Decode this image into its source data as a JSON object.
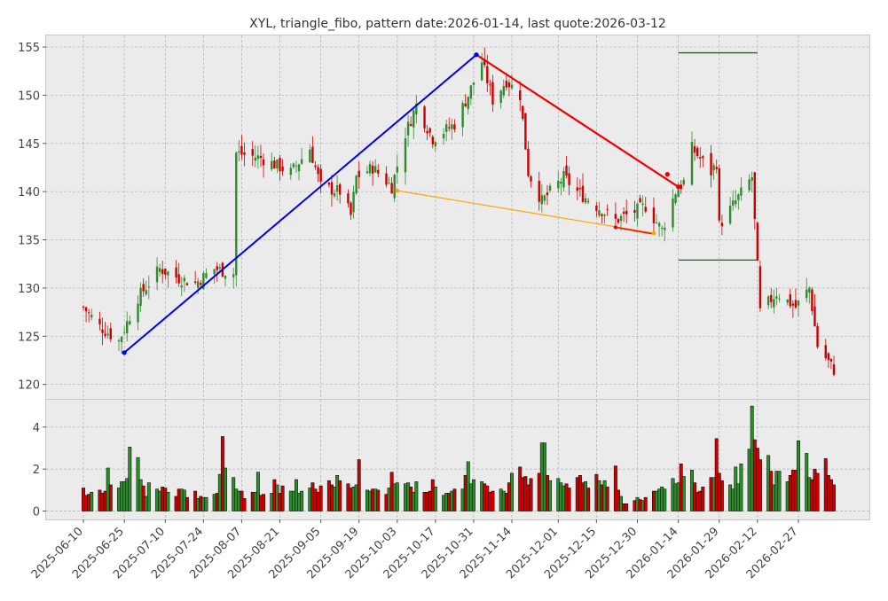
{
  "chart_data": {
    "type": "candlestick",
    "title": "XYL, triangle_fibo, pattern date:2026-01-14, last quote:2026-03-12",
    "colors": {
      "panel_bg": "#ebebeb",
      "grid": "#b0b0b0",
      "up": "#2e8b2e",
      "down": "#cc0000",
      "triangle_blue": "#0000ee",
      "triangle_red": "#ee0000",
      "fibo_orange": "#ffa500",
      "level_green": "#007700"
    },
    "price_axis": {
      "ylim": [
        118.5,
        156.2
      ],
      "ticks": [
        120,
        125,
        130,
        135,
        140,
        145,
        150,
        155
      ]
    },
    "volume_axis": {
      "ylim": [
        -0.4,
        5.3
      ],
      "ticks": [
        0,
        2,
        4
      ]
    },
    "x_axis": {
      "first_date": "2025-06-10",
      "last_date": "2026-03-12",
      "tick_labels": [
        "2025-06-10",
        "2025-06-25",
        "2025-07-10",
        "2025-07-24",
        "2025-08-07",
        "2025-08-21",
        "2025-09-05",
        "2025-09-19",
        "2025-10-03",
        "2025-10-17",
        "2025-10-31",
        "2025-11-14",
        "2025-12-01",
        "2025-12-15",
        "2025-12-30",
        "2026-01-14",
        "2026-01-29",
        "2026-02-12",
        "2026-02-27"
      ]
    },
    "anchors": [
      {
        "date": "2025-06-10",
        "price": 128.0
      },
      {
        "date": "2025-06-16",
        "price": 126.0
      },
      {
        "date": "2025-06-23",
        "price": 124.5
      },
      {
        "date": "2025-06-30",
        "price": 129.0
      },
      {
        "date": "2025-07-08",
        "price": 132.0
      },
      {
        "date": "2025-07-15",
        "price": 131.0
      },
      {
        "date": "2025-07-21",
        "price": 130.5
      },
      {
        "date": "2025-07-28",
        "price": 132.0
      },
      {
        "date": "2025-08-04",
        "price": 131.5
      },
      {
        "date": "2025-08-05",
        "price": 144.0
      },
      {
        "date": "2025-08-14",
        "price": 143.5
      },
      {
        "date": "2025-08-25",
        "price": 142.0
      },
      {
        "date": "2025-09-01",
        "price": 144.5
      },
      {
        "date": "2025-09-05",
        "price": 140.5
      },
      {
        "date": "2025-09-12",
        "price": 140.0
      },
      {
        "date": "2025-09-16",
        "price": 137.5
      },
      {
        "date": "2025-09-18",
        "price": 141.5
      },
      {
        "date": "2025-09-24",
        "price": 142.5
      },
      {
        "date": "2025-10-01",
        "price": 140.5
      },
      {
        "date": "2025-10-06",
        "price": 146.0
      },
      {
        "date": "2025-10-10",
        "price": 149.0
      },
      {
        "date": "2025-10-16",
        "price": 145.5
      },
      {
        "date": "2025-10-24",
        "price": 147.0
      },
      {
        "date": "2025-10-29",
        "price": 150.0
      },
      {
        "date": "2025-11-03",
        "price": 153.5
      },
      {
        "date": "2025-11-07",
        "price": 149.5
      },
      {
        "date": "2025-11-12",
        "price": 151.5
      },
      {
        "date": "2025-11-17",
        "price": 150.0
      },
      {
        "date": "2025-11-20",
        "price": 142.0
      },
      {
        "date": "2025-11-25",
        "price": 139.0
      },
      {
        "date": "2025-12-03",
        "price": 141.5
      },
      {
        "date": "2025-12-08",
        "price": 140.0
      },
      {
        "date": "2025-12-15",
        "price": 138.5
      },
      {
        "date": "2025-12-22",
        "price": 137.0
      },
      {
        "date": "2026-01-02",
        "price": 138.5
      },
      {
        "date": "2026-01-08",
        "price": 136.0
      },
      {
        "date": "2026-01-13",
        "price": 140.0
      },
      {
        "date": "2026-01-16",
        "price": 141.0
      },
      {
        "date": "2026-01-19",
        "price": 144.5
      },
      {
        "date": "2026-01-26",
        "price": 142.0
      },
      {
        "date": "2026-01-28",
        "price": 143.0
      },
      {
        "date": "2026-01-29",
        "price": 136.5
      },
      {
        "date": "2026-02-04",
        "price": 139.0
      },
      {
        "date": "2026-02-10",
        "price": 141.5
      },
      {
        "date": "2026-02-13",
        "price": 127.5
      },
      {
        "date": "2026-02-19",
        "price": 129.5
      },
      {
        "date": "2026-02-26",
        "price": 128.0
      },
      {
        "date": "2026-03-03",
        "price": 130.0
      },
      {
        "date": "2026-03-06",
        "price": 124.0
      },
      {
        "date": "2026-03-12",
        "price": 121.5
      }
    ],
    "volume_series": [
      1.1,
      0.75,
      0.8,
      0.9,
      1.0,
      0.85,
      0.95,
      2.05,
      1.25,
      1.1,
      1.4,
      1.55,
      3.05,
      2.55,
      1.5,
      1.2,
      0.7,
      1.35,
      1.05,
      0.95,
      1.15,
      1.1,
      0.9,
      0.7,
      1.05,
      1.05,
      1.0,
      0.65,
      0.95,
      0.6,
      0.7,
      0.65,
      0.8,
      0.85,
      1.75,
      3.55,
      2.05,
      1.6,
      1.05,
      0.95,
      0.95,
      0.6,
      0.9,
      0.9,
      1.85,
      0.75,
      0.8,
      0.85,
      1.5,
      1.25,
      0.85,
      1.2,
      0.95,
      1.5,
      0.85,
      0.95,
      1.1,
      1.35,
      1.05,
      0.9,
      1.2,
      1.45,
      1.25,
      1.15,
      1.7,
      1.45,
      1.3,
      1.1,
      1.15,
      1.25,
      2.45,
      1.0,
      0.95,
      1.05,
      1.0,
      0.8,
      1.1,
      1.85,
      1.3,
      1.35,
      1.3,
      1.35,
      1.15,
      0.9,
      1.4,
      0.9,
      0.9,
      0.95,
      1.5,
      1.15,
      0.75,
      0.85,
      0.85,
      0.95,
      1.05,
      1.7,
      2.35,
      1.3,
      1.5,
      1.4,
      1.3,
      1.2,
      0.9,
      0.95,
      1.05,
      0.95,
      0.85,
      1.35,
      1.8,
      2.1,
      1.6,
      1.65,
      1.25,
      1.55,
      1.8,
      3.25,
      1.7,
      1.45,
      1.55,
      1.35,
      1.2,
      1.3,
      1.1,
      1.6,
      1.7,
      1.35,
      1.4,
      1.1,
      1.75,
      1.45,
      1.25,
      1.45,
      1.15,
      2.15,
      1.0,
      0.7,
      0.35,
      0.5,
      0.65,
      0.55,
      0.5,
      0.65,
      0.95,
      0.95,
      1.05,
      1.15,
      1.05,
      1.55,
      1.3,
      1.35,
      2.25,
      1.65,
      1.95,
      1.35,
      0.9,
      0.95,
      1.15,
      1.6,
      3.45,
      1.8,
      1.45,
      1.25,
      1.05,
      2.1,
      1.3,
      2.25,
      2.95,
      5.0,
      3.4,
      3.0,
      2.45,
      2.65,
      1.9,
      1.25,
      1.9,
      1.9,
      1.4,
      1.7,
      1.95,
      3.35,
      2.75,
      1.6,
      1.5,
      2.0,
      1.8,
      2.5,
      1.7,
      1.5,
      1.25
    ],
    "overlays": {
      "blue_line": [
        {
          "date": "2025-06-25",
          "price": 123.3
        },
        {
          "date": "2025-11-01",
          "price": 154.2
        }
      ],
      "red_line": [
        {
          "date": "2025-11-01",
          "price": 154.2
        },
        {
          "date": "2026-01-14",
          "price": 140.5
        }
      ],
      "red_points": [
        {
          "date": "2026-01-10",
          "price": 141.8
        },
        {
          "date": "2026-01-14",
          "price": 140.5
        }
      ],
      "orange_line": [
        {
          "date": "2025-10-03",
          "price": 140.1
        },
        {
          "date": "2026-01-05",
          "price": 135.7
        }
      ],
      "short_red_line": [
        {
          "date": "2025-12-22",
          "price": 136.3
        },
        {
          "date": "2026-01-05",
          "price": 135.6
        }
      ],
      "green_levels": [
        {
          "from": "2026-01-14",
          "to": "2026-02-12",
          "price": 154.4
        },
        {
          "from": "2026-01-14",
          "to": "2026-02-12",
          "price": 132.9
        }
      ]
    }
  }
}
